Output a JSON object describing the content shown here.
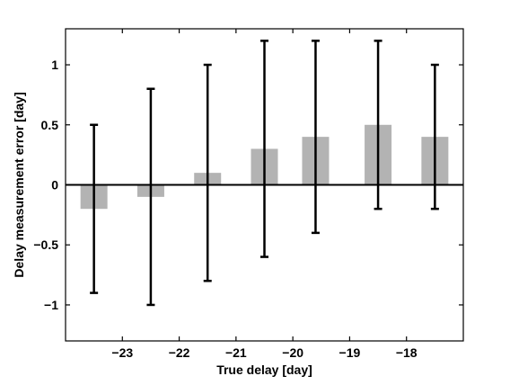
{
  "chart_data": {
    "type": "bar",
    "title": "",
    "xlabel": "True delay [day]",
    "ylabel": "Delay measurement error [day]",
    "xlim": [
      -24.0,
      -17.0
    ],
    "ylim": [
      -1.3,
      1.3
    ],
    "xticks": [
      -23,
      -22,
      -21,
      -20,
      -19,
      -18
    ],
    "xtick_labels": [
      "−23",
      "−22",
      "−21",
      "−20",
      "−19",
      "−18"
    ],
    "yticks": [
      -1,
      -0.5,
      0,
      0.5,
      1
    ],
    "ytick_labels": [
      "−1",
      "−0.5",
      "0",
      "0.5",
      "1"
    ],
    "grid": false,
    "bar_color": "#b3b3b3",
    "zero_line": true,
    "bars": [
      {
        "x": -23.5,
        "value": -0.2,
        "err_low": -0.9,
        "err_high": 0.5
      },
      {
        "x": -22.5,
        "value": -0.1,
        "err_low": -1.0,
        "err_high": 0.8
      },
      {
        "x": -21.5,
        "value": 0.1,
        "err_low": -0.8,
        "err_high": 1.0
      },
      {
        "x": -20.5,
        "value": 0.3,
        "err_low": -0.6,
        "err_high": 1.2
      },
      {
        "x": -19.6,
        "value": 0.4,
        "err_low": -0.4,
        "err_high": 1.2
      },
      {
        "x": -18.5,
        "value": 0.5,
        "err_low": -0.2,
        "err_high": 1.2
      },
      {
        "x": -17.5,
        "value": 0.4,
        "err_low": -0.2,
        "err_high": 1.0
      }
    ]
  }
}
